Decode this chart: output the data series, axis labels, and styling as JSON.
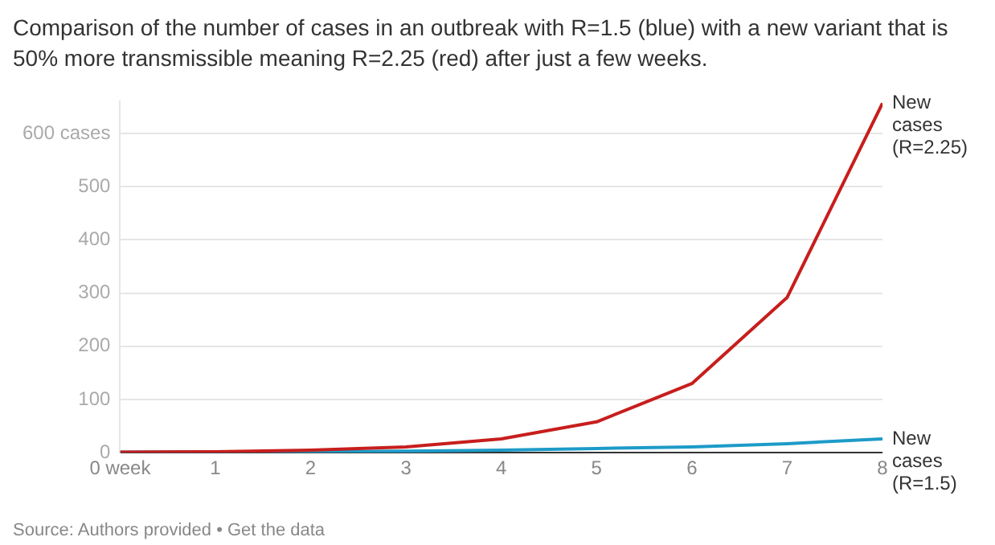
{
  "chart_data": {
    "type": "line",
    "title": "Comparison of the number of cases in an outbreak with R=1.5 (blue) with a new variant that is 50% more transmissible meaning R=2.25 (red) after just a few weeks.",
    "x": [
      0,
      1,
      2,
      3,
      4,
      5,
      6,
      7,
      8
    ],
    "series": [
      {
        "name": "New cases (R=2.25)",
        "color": "#c71e1d",
        "values": [
          1,
          2,
          5,
          11,
          26,
          58,
          130,
          292,
          657
        ]
      },
      {
        "name": "New cases (R=1.5)",
        "color": "#1d9bc8",
        "values": [
          1,
          2,
          2,
          3,
          5,
          8,
          11,
          17,
          26
        ]
      }
    ],
    "xlim": [
      0,
      8
    ],
    "xticks": [
      {
        "value": 0,
        "label": "0 week"
      },
      1,
      2,
      3,
      4,
      5,
      6,
      7,
      8
    ],
    "ylim": [
      0,
      660
    ],
    "yticks": [
      0,
      100,
      200,
      300,
      400,
      500,
      {
        "value": 600,
        "label": "600 cases"
      }
    ],
    "grid": "y",
    "legend": false,
    "marker": "none",
    "line_style": "solid",
    "annotations": [
      "Source: Authors provided • Get the data"
    ]
  }
}
